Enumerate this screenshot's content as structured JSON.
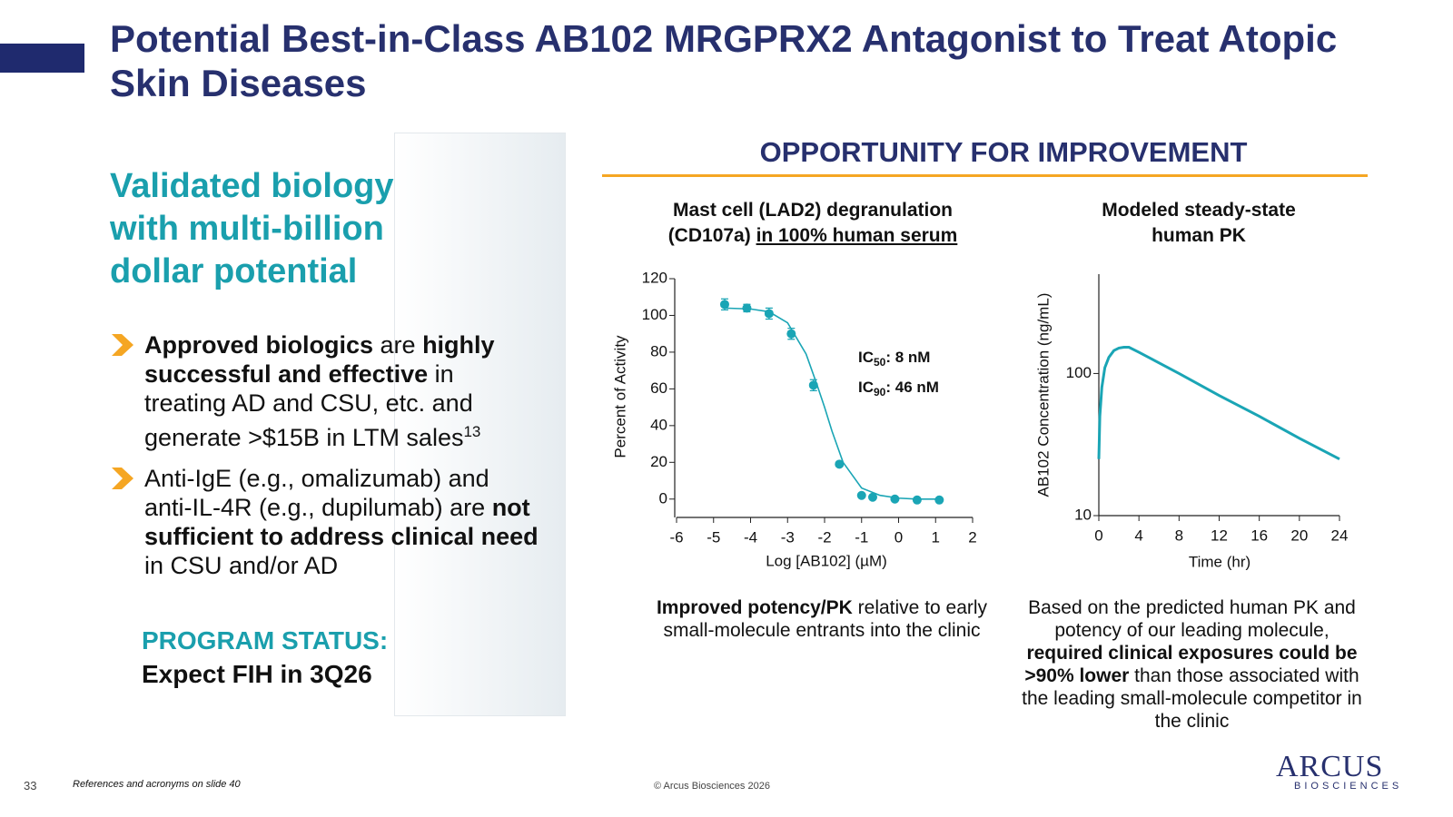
{
  "header": {
    "title": "Potential Best-in-Class AB102 MRGPRX2 Antagonist to Treat Atopic Skin Diseases"
  },
  "left": {
    "headline": "Validated biology with multi-billion dollar potential",
    "bullets": [
      [
        {
          "text": "Approved biologics",
          "bold": true
        },
        {
          "text": " are "
        },
        {
          "text": "highly successful and effective",
          "bold": true
        },
        {
          "text": " in treating AD and CSU, etc. and generate >$15B in LTM sales"
        },
        {
          "text": "13",
          "sup": true
        }
      ],
      [
        {
          "text": "Anti-IgE (e.g., omalizumab) and anti-IL-4R (e.g., dupilumab) are "
        },
        {
          "text": "not sufficient to address clinical need",
          "bold": true
        },
        {
          "text": " in CSU and/or AD"
        }
      ]
    ],
    "status_label": "PROGRAM STATUS:",
    "status": "Expect FIH in 3Q26"
  },
  "opportunity": {
    "title": "OPPORTUNITY FOR IMPROVEMENT",
    "captions": [
      [
        {
          "text": "Improved potency/PK",
          "bold": true
        },
        {
          "text": " relative to early small-molecule entrants into the clinic"
        }
      ],
      [
        {
          "text": "Based on the predicted human PK and potency of our leading molecule, "
        },
        {
          "text": "required clinical exposures could be >90% lower",
          "bold": true
        },
        {
          "text": " than those associated with the leading small-molecule competitor in the clinic"
        }
      ]
    ]
  },
  "chart_data": [
    {
      "type": "scatter",
      "title": [
        {
          "text": "Mast cell (LAD2) degranulation (CD107a) "
        },
        {
          "text": "in 100% human serum",
          "underline": true
        }
      ],
      "xlabel": "Log [AB102] (µM)",
      "ylabel": "Percent of Activity",
      "xlim": [
        -6,
        2
      ],
      "xticks": [
        -6,
        -5,
        -4,
        -3,
        -2,
        -1,
        0,
        1,
        2
      ],
      "ylim": [
        -10,
        120
      ],
      "yticks": [
        0,
        20,
        40,
        60,
        80,
        100,
        120
      ],
      "points": {
        "color": "#1aa5b5",
        "x": [
          -4.7,
          -4.1,
          -3.5,
          -2.9,
          -2.3,
          -1.6,
          -1.0,
          -0.7,
          -0.1,
          0.5,
          1.1
        ],
        "values": [
          106,
          104,
          101,
          90,
          62,
          19,
          2,
          1,
          0,
          -0.5,
          -0.5
        ],
        "errors": [
          3,
          2,
          3,
          3,
          3,
          1,
          1,
          1,
          1,
          1,
          1
        ]
      },
      "fit": {
        "color": "#1aa5b5",
        "x": [
          -4.7,
          -4,
          -3.5,
          -3,
          -2.5,
          -2.2,
          -2,
          -1.8,
          -1.5,
          -1,
          -0.5,
          0,
          0.5,
          1.1
        ],
        "values": [
          104,
          103.5,
          102,
          96,
          79,
          62,
          50,
          37,
          20,
          6,
          2,
          0.5,
          0,
          0
        ]
      },
      "annotations": [
        {
          "text": "IC",
          "sub": "50",
          "rest": ": 8 nM"
        },
        {
          "text": "IC",
          "sub": "90",
          "rest": ": 46 nM"
        }
      ]
    },
    {
      "type": "line",
      "title": "Modeled steady-state human PK",
      "xlabel": "Time (hr)",
      "ylabel": "AB102 Concentration (ng/mL)",
      "xlim": [
        0,
        24
      ],
      "xticks": [
        0,
        4,
        8,
        12,
        16,
        20,
        24
      ],
      "ylim": [
        10,
        500
      ],
      "yticks": [
        10,
        100
      ],
      "log_y": true,
      "color": "#1aa5b5",
      "x": [
        0,
        0.1,
        0.3,
        0.6,
        1,
        1.5,
        2,
        2.5,
        3,
        4,
        8,
        12,
        16,
        20,
        24
      ],
      "values": [
        25,
        50,
        80,
        110,
        130,
        145,
        151,
        153,
        153,
        141,
        100,
        70,
        50,
        35,
        25
      ]
    }
  ],
  "footer": {
    "page": "33",
    "refs": "References and acronyms on slide 40",
    "copyright": "© Arcus Biosciences 2026",
    "logo": "ARCUS",
    "logo_sub": "BIOSCIENCES"
  }
}
